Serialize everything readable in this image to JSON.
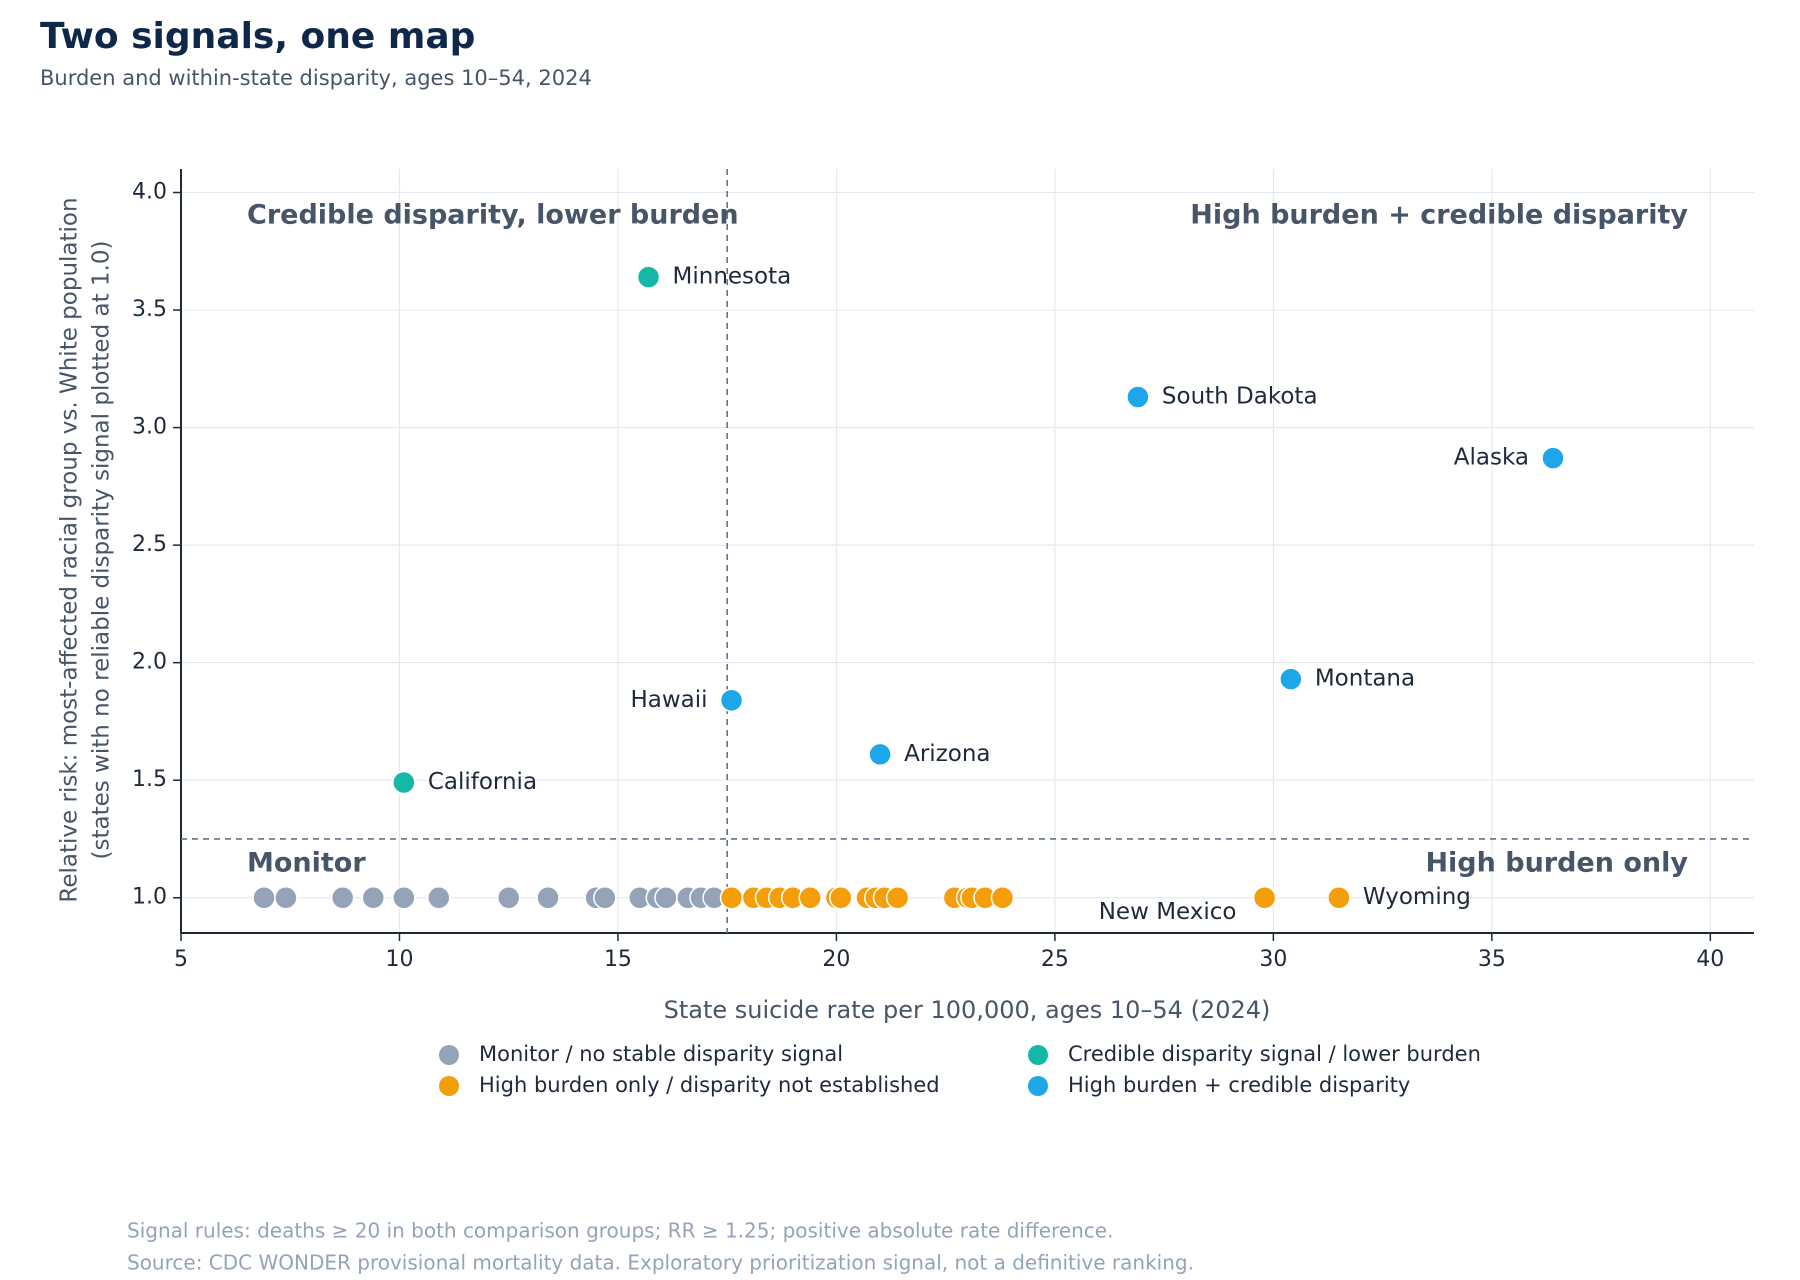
{
  "chart_data": {
    "type": "scatter",
    "title": "Two signals, one map",
    "subtitle": "Burden and within-state disparity, ages 10–54, 2024",
    "x_label": "State suicide rate per 100,000, ages 10–54 (2024)",
    "y_label": [
      "Relative risk: most-affected racial group vs. White population",
      "(states with no reliable disparity signal plotted at 1.0)"
    ],
    "xlim": [
      5,
      41
    ],
    "ylim": [
      0.85,
      4.1
    ],
    "xticks": [
      5,
      10,
      15,
      20,
      25,
      30,
      35,
      40
    ],
    "yticks": [
      {
        "value": 1.0,
        "label": "1.0"
      },
      1.5,
      {
        "value": 2.0,
        "label": "2.0"
      },
      2.5,
      {
        "value": 3.0,
        "label": "3.0"
      },
      3.5,
      {
        "value": 4.0,
        "label": "4.0"
      }
    ],
    "grid": true,
    "thresholds": {
      "x": 17.5,
      "y": 1.25
    },
    "annotations": [
      "Credible disparity, lower burden",
      "High burden + credible disparity",
      "Monitor",
      "High burden only"
    ],
    "series": [
      {
        "name": "Monitor / no stable disparity signal",
        "color": "#94a3b8",
        "x": [
          6.9,
          7.4,
          8.7,
          9.4,
          10.1,
          10.9,
          12.5,
          13.4,
          14.5,
          14.7,
          15.5,
          15.9,
          16.1,
          16.6,
          16.9,
          17.2
        ],
        "values": [
          1.0,
          1.0,
          1.0,
          1.0,
          1.0,
          1.0,
          1.0,
          1.0,
          1.0,
          1.0,
          1.0,
          1.0,
          1.0,
          1.0,
          1.0,
          1.0
        ],
        "labels": [
          null,
          null,
          null,
          null,
          null,
          null,
          null,
          null,
          null,
          null,
          null,
          null,
          null,
          null,
          null,
          null
        ]
      },
      {
        "name": "High burden only / disparity not established",
        "color": "#f59e0b",
        "x": [
          17.6,
          18.1,
          18.4,
          18.7,
          19.0,
          19.4,
          20.0,
          20.1,
          20.7,
          20.9,
          21.1,
          21.4,
          22.7,
          23.0,
          23.1,
          23.4,
          23.8,
          29.8,
          31.5
        ],
        "values": [
          1.0,
          1.0,
          1.0,
          1.0,
          1.0,
          1.0,
          1.0,
          1.0,
          1.0,
          1.0,
          1.0,
          1.0,
          1.0,
          1.0,
          1.0,
          1.0,
          1.0,
          1.0,
          1.0
        ],
        "labels": [
          null,
          null,
          null,
          null,
          null,
          null,
          null,
          null,
          null,
          null,
          null,
          null,
          null,
          null,
          null,
          null,
          null,
          "New Mexico",
          "Wyoming"
        ]
      },
      {
        "name": "Credible disparity signal / lower burden",
        "color": "#14b8a6",
        "x": [
          15.7,
          10.1
        ],
        "values": [
          3.64,
          1.49
        ],
        "labels": [
          "Minnesota",
          "California"
        ]
      },
      {
        "name": "High burden + credible disparity",
        "color": "#1ea7e8",
        "x": [
          26.9,
          36.4,
          30.4,
          17.6,
          21.0
        ],
        "values": [
          3.13,
          2.87,
          1.93,
          1.84,
          1.61
        ],
        "labels": [
          "South Dakota",
          "Alaska",
          "Montana",
          "Hawaii",
          "Arizona"
        ]
      }
    ],
    "notes": [
      "Signal rules: deaths ≥ 20 in both comparison groups; RR ≥ 1.25; positive absolute rate difference.",
      "Source: CDC WONDER provisional mortality data. Exploratory prioritization signal, not a definitive ranking."
    ]
  }
}
